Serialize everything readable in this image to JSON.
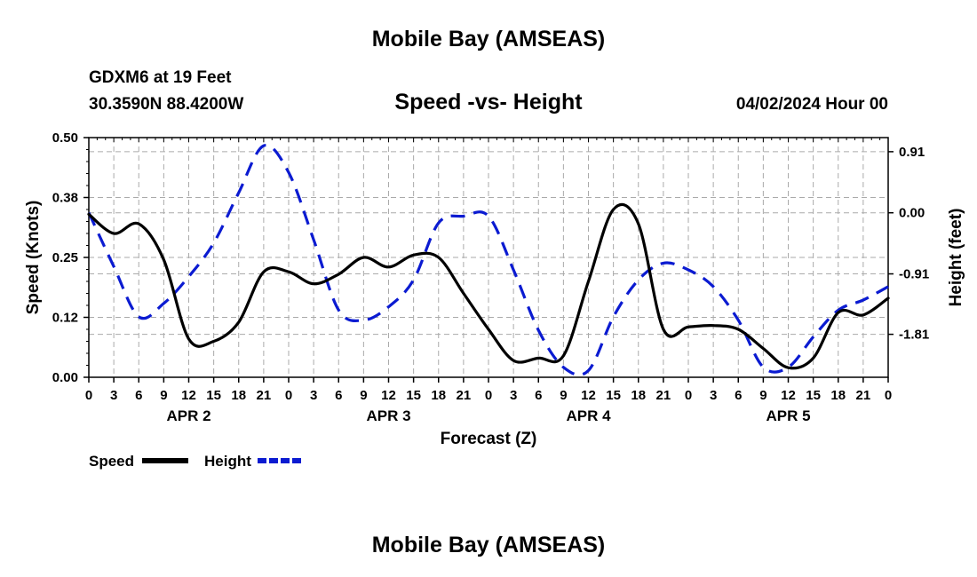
{
  "header": {
    "title": "Mobile Bay (AMSEAS)",
    "station": "GDXM6 at 19 Feet",
    "coords": "30.3590N  88.4200W",
    "subtitle": "Speed -vs- Height",
    "datetime": "04/02/2024 Hour 00",
    "footer_title": "Mobile Bay (AMSEAS)"
  },
  "chart_data": {
    "type": "line",
    "title": "Speed -vs- Height",
    "xlabel": "Forecast (Z)",
    "ylabel": "Speed (Knots)",
    "y2label": "Height (feet)",
    "x_range_hours": [
      0,
      96
    ],
    "ylim": [
      0,
      0.5
    ],
    "y2lim": [
      -2.45,
      1.12
    ],
    "y_ticks": [
      {
        "v": 0.0,
        "label": "0.00"
      },
      {
        "v": 0.125,
        "label": "0.12"
      },
      {
        "v": 0.25,
        "label": "0.25"
      },
      {
        "v": 0.375,
        "label": "0.38"
      },
      {
        "v": 0.5,
        "label": "0.50"
      }
    ],
    "y2_ticks": [
      {
        "v": 0.91,
        "label": "0.91"
      },
      {
        "v": 0.0,
        "label": "0.00"
      },
      {
        "v": -0.91,
        "label": "-0.91"
      },
      {
        "v": -1.81,
        "label": "-1.81"
      }
    ],
    "x_tick_labels": [
      "0",
      "3",
      "6",
      "9",
      "12",
      "15",
      "18",
      "21",
      "0",
      "3",
      "6",
      "9",
      "12",
      "15",
      "18",
      "21",
      "0",
      "3",
      "6",
      "9",
      "12",
      "15",
      "18",
      "21",
      "0",
      "3",
      "6",
      "9",
      "12",
      "15",
      "18",
      "21",
      "0"
    ],
    "day_labels": [
      {
        "hour": 12,
        "label": "APR 2"
      },
      {
        "hour": 36,
        "label": "APR 3"
      },
      {
        "hour": 60,
        "label": "APR 4"
      },
      {
        "hour": 84,
        "label": "APR 5"
      }
    ],
    "legend_position": "bottom-left",
    "series": [
      {
        "name": "Speed",
        "axis": "left",
        "color": "#000000",
        "dash": "solid",
        "x": [
          0,
          3,
          6,
          9,
          12,
          15,
          18,
          21,
          24,
          27,
          30,
          33,
          36,
          39,
          42,
          45,
          48,
          51,
          54,
          57,
          60,
          63,
          66,
          69,
          72,
          75,
          78,
          81,
          84,
          87,
          90,
          93,
          96
        ],
        "values": [
          0.34,
          0.3,
          0.32,
          0.245,
          0.08,
          0.075,
          0.115,
          0.22,
          0.22,
          0.195,
          0.215,
          0.25,
          0.23,
          0.255,
          0.25,
          0.175,
          0.1,
          0.035,
          0.04,
          0.045,
          0.2,
          0.35,
          0.32,
          0.1,
          0.105,
          0.108,
          0.1,
          0.06,
          0.02,
          0.04,
          0.135,
          0.13,
          0.165
        ]
      },
      {
        "name": "Height",
        "axis": "right",
        "color": "#0b1bd1",
        "dash": "dashed",
        "x": [
          0,
          3,
          6,
          9,
          12,
          15,
          18,
          21,
          24,
          27,
          30,
          33,
          36,
          39,
          42,
          45,
          48,
          51,
          54,
          57,
          60,
          63,
          66,
          69,
          72,
          75,
          78,
          81,
          84,
          87,
          90,
          93,
          96
        ],
        "values": [
          0.0,
          -0.8,
          -1.55,
          -1.35,
          -0.95,
          -0.45,
          0.3,
          1.0,
          0.6,
          -0.4,
          -1.45,
          -1.6,
          -1.4,
          -1.0,
          -0.15,
          -0.05,
          -0.05,
          -0.85,
          -1.75,
          -2.3,
          -2.35,
          -1.55,
          -1.0,
          -0.75,
          -0.85,
          -1.1,
          -1.6,
          -2.3,
          -2.3,
          -1.85,
          -1.45,
          -1.3,
          -1.1
        ]
      }
    ]
  }
}
